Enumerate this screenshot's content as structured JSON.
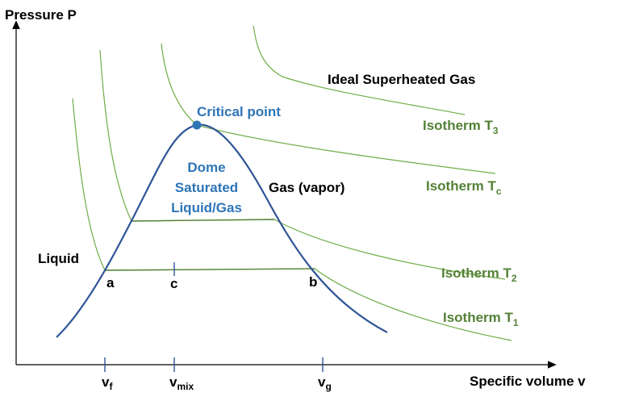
{
  "axes": {
    "y_label": "Pressure P",
    "x_label": "Specific volume v"
  },
  "regions": {
    "superheated": "Ideal Superheated Gas",
    "gas": "Gas (vapor)",
    "liquid": "Liquid",
    "dome_line1": "Dome",
    "dome_line2": "Saturated",
    "dome_line3": "Liquid/Gas",
    "critical_point": "Critical point"
  },
  "isotherms": {
    "t3": {
      "main": "Isotherm T",
      "sub": "3"
    },
    "tc": {
      "main": "Isotherm T",
      "sub": "c"
    },
    "t2": {
      "main": "Isotherm T",
      "sub": "2"
    },
    "t1": {
      "main": "Isotherm T",
      "sub": "1"
    }
  },
  "points": {
    "a": "a",
    "b": "b",
    "c": "c"
  },
  "x_ticks": {
    "vf": {
      "main": "v",
      "sub": "f"
    },
    "vmix": {
      "main": "v",
      "sub": "mix"
    },
    "vg": {
      "main": "v",
      "sub": "g"
    }
  },
  "colors": {
    "dome": "#2F5597",
    "isotherm": "#70AD47",
    "label_blue": "#2E75B6",
    "label_green": "#538135",
    "critical_point": "#2E75B6"
  }
}
